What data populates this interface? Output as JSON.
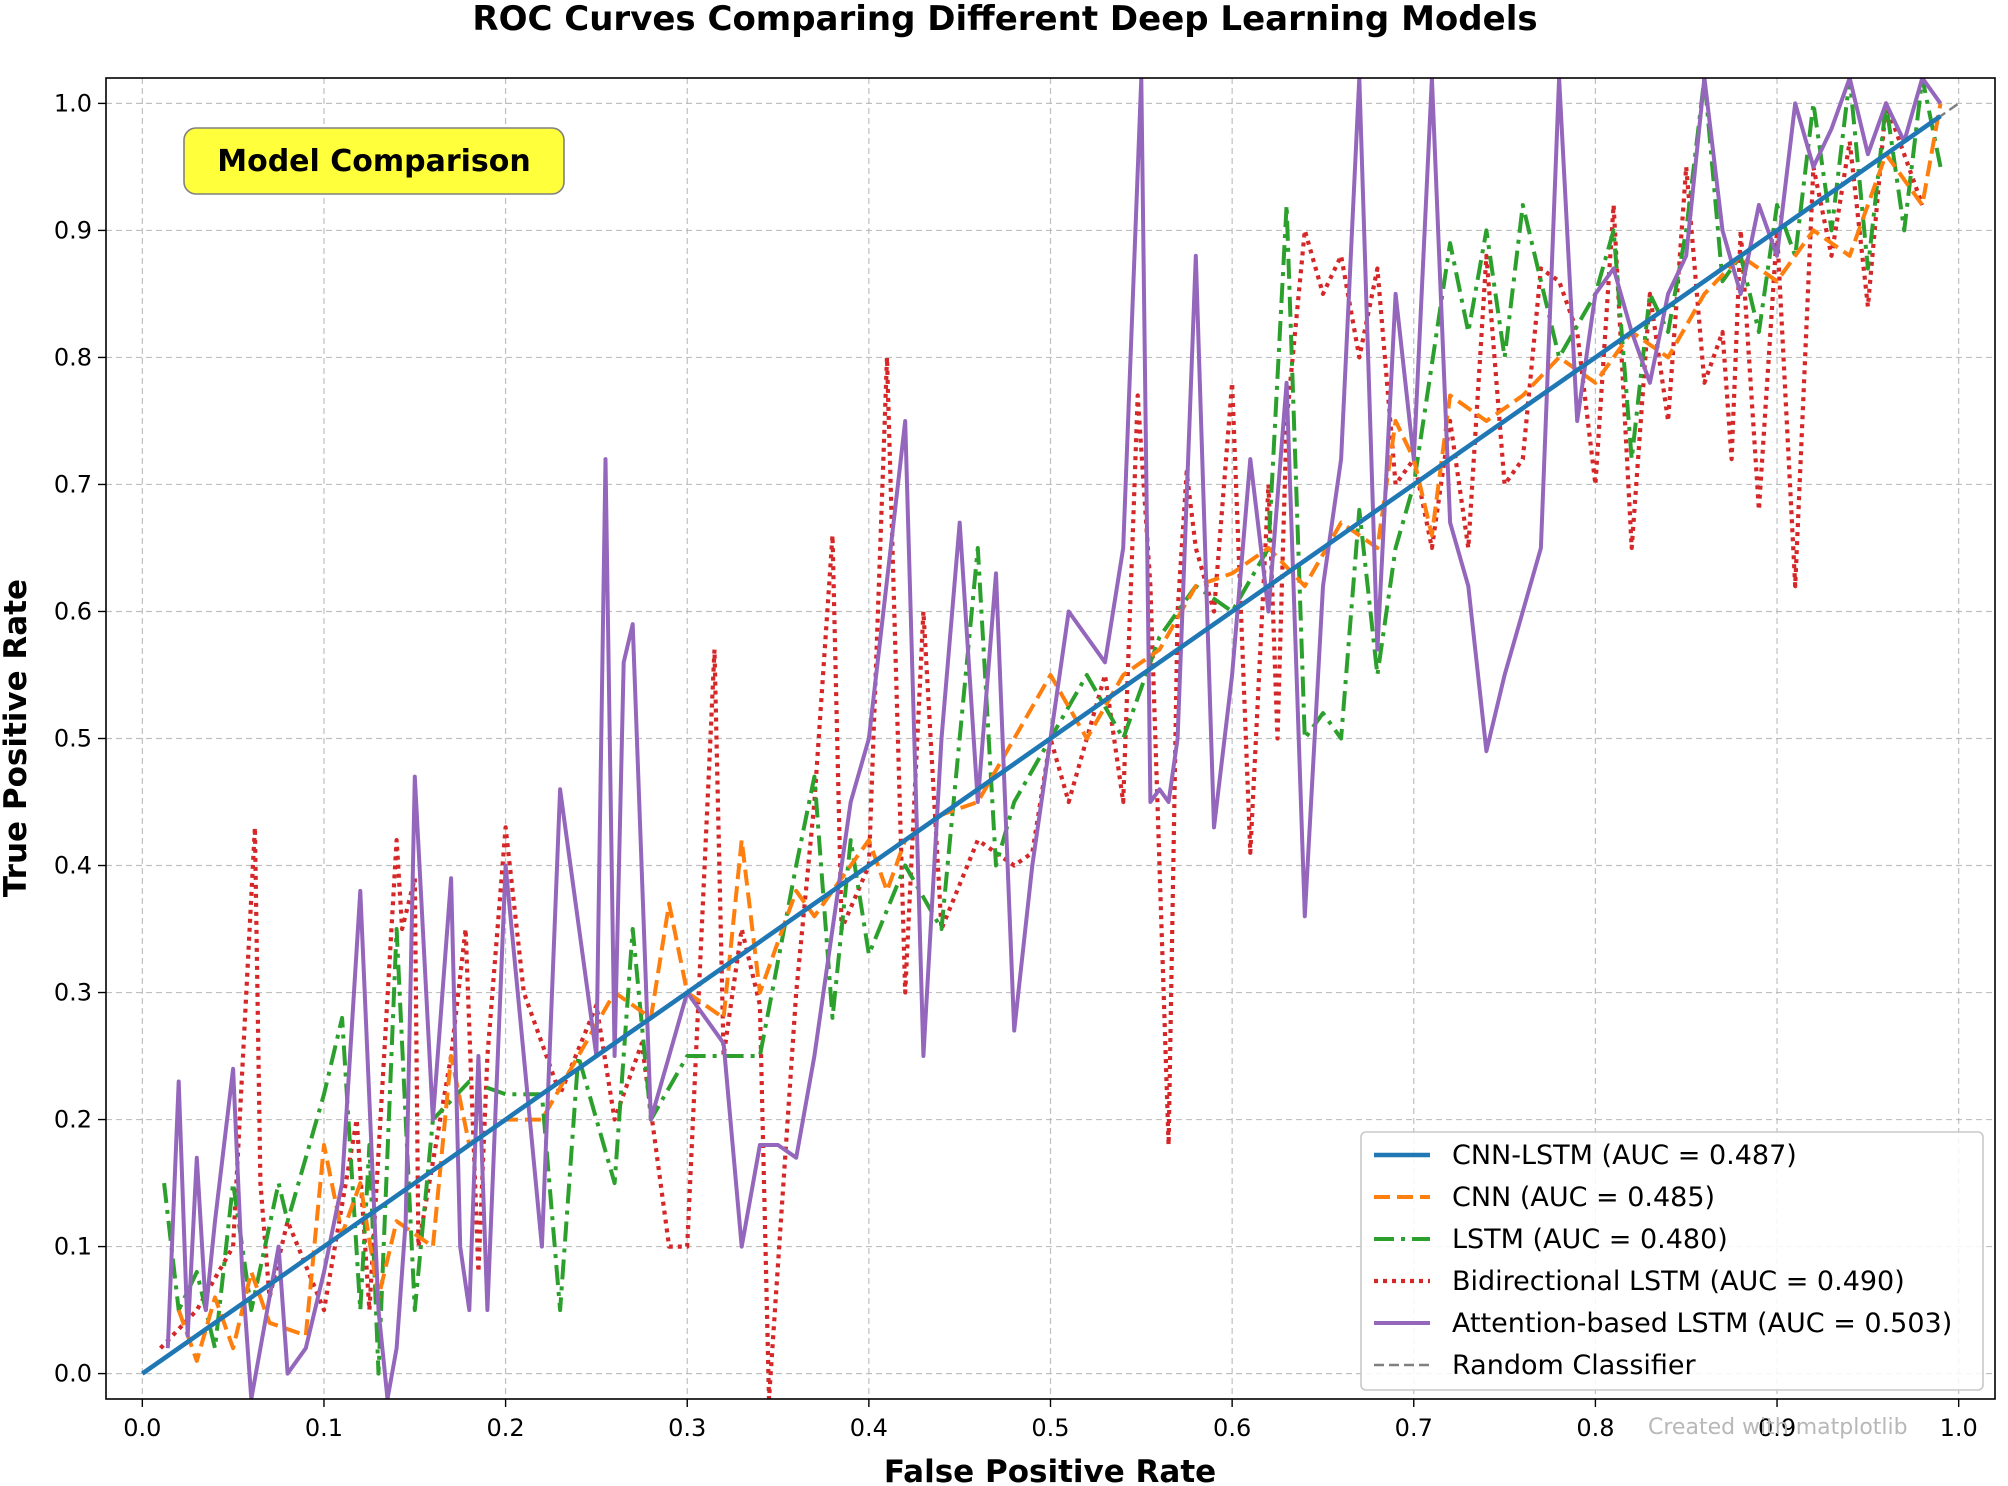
{
  "chart_data": {
    "type": "line",
    "title": "ROC Curves Comparing Different Deep Learning Models",
    "xlabel": "False Positive Rate",
    "ylabel": "True Positive Rate",
    "xlim": [
      -0.02,
      1.02
    ],
    "ylim": [
      -0.02,
      1.02
    ],
    "xticks": [
      "0.0",
      "0.1",
      "0.2",
      "0.3",
      "0.4",
      "0.5",
      "0.6",
      "0.7",
      "0.8",
      "0.9",
      "1.0"
    ],
    "yticks": [
      "0.0",
      "0.1",
      "0.2",
      "0.3",
      "0.4",
      "0.5",
      "0.6",
      "0.7",
      "0.8",
      "0.9",
      "1.0"
    ],
    "grid": true,
    "legend_position": "bottom-right",
    "annotation": "Model Comparison",
    "watermark": "Created with matplotlib",
    "series": [
      {
        "name": "Random Classifier",
        "label": "Random Classifier",
        "color": "#808080",
        "style": "dashed-thin",
        "x": [
          0.0,
          1.0
        ],
        "y": [
          0.0,
          1.0
        ]
      },
      {
        "name": "Bidirectional LSTM",
        "label": "Bidirectional LSTM (AUC = 0.490)",
        "color": "#d62728",
        "style": "dotted",
        "x": [
          0.01,
          0.03,
          0.05,
          0.062,
          0.065,
          0.07,
          0.08,
          0.1,
          0.118,
          0.125,
          0.14,
          0.143,
          0.15,
          0.152,
          0.17,
          0.178,
          0.185,
          0.19,
          0.2,
          0.21,
          0.23,
          0.25,
          0.26,
          0.275,
          0.29,
          0.3,
          0.315,
          0.32,
          0.33,
          0.34,
          0.345,
          0.36,
          0.37,
          0.38,
          0.385,
          0.4,
          0.41,
          0.42,
          0.43,
          0.44,
          0.46,
          0.48,
          0.49,
          0.5,
          0.51,
          0.52,
          0.53,
          0.54,
          0.548,
          0.555,
          0.565,
          0.57,
          0.575,
          0.58,
          0.59,
          0.6,
          0.61,
          0.62,
          0.625,
          0.63,
          0.64,
          0.65,
          0.66,
          0.67,
          0.68,
          0.69,
          0.7,
          0.71,
          0.72,
          0.73,
          0.74,
          0.75,
          0.76,
          0.77,
          0.78,
          0.79,
          0.8,
          0.81,
          0.82,
          0.83,
          0.84,
          0.85,
          0.86,
          0.87,
          0.875,
          0.88,
          0.89,
          0.9,
          0.91,
          0.92,
          0.93,
          0.94,
          0.95,
          0.96,
          0.98
        ],
        "y": [
          0.02,
          0.05,
          0.1,
          0.43,
          0.15,
          0.06,
          0.12,
          0.05,
          0.2,
          0.05,
          0.42,
          0.35,
          0.39,
          0.1,
          0.25,
          0.35,
          0.08,
          0.25,
          0.43,
          0.3,
          0.22,
          0.29,
          0.2,
          0.26,
          0.1,
          0.1,
          0.57,
          0.25,
          0.35,
          0.29,
          -0.02,
          0.3,
          0.45,
          0.66,
          0.35,
          0.4,
          0.8,
          0.3,
          0.6,
          0.35,
          0.42,
          0.4,
          0.41,
          0.5,
          0.45,
          0.5,
          0.55,
          0.45,
          0.77,
          0.62,
          0.18,
          0.6,
          0.71,
          0.65,
          0.6,
          0.78,
          0.41,
          0.7,
          0.5,
          0.75,
          0.9,
          0.85,
          0.88,
          0.8,
          0.87,
          0.7,
          0.72,
          0.65,
          0.75,
          0.65,
          0.88,
          0.7,
          0.72,
          0.87,
          0.86,
          0.82,
          0.7,
          0.92,
          0.65,
          0.85,
          0.75,
          0.95,
          0.78,
          0.82,
          0.72,
          0.9,
          0.68,
          0.9,
          0.62,
          0.95,
          0.88,
          0.97,
          0.84,
          1.0,
          0.92
        ]
      },
      {
        "name": "LSTM",
        "label": "LSTM (AUC = 0.480)",
        "color": "#2ca02c",
        "style": "dashdot",
        "x": [
          0.012,
          0.02,
          0.03,
          0.04,
          0.05,
          0.06,
          0.075,
          0.08,
          0.1,
          0.11,
          0.12,
          0.125,
          0.13,
          0.14,
          0.15,
          0.16,
          0.18,
          0.2,
          0.22,
          0.23,
          0.24,
          0.26,
          0.27,
          0.28,
          0.3,
          0.32,
          0.34,
          0.36,
          0.37,
          0.38,
          0.39,
          0.4,
          0.42,
          0.44,
          0.46,
          0.47,
          0.48,
          0.5,
          0.52,
          0.54,
          0.56,
          0.58,
          0.6,
          0.62,
          0.63,
          0.64,
          0.65,
          0.66,
          0.67,
          0.68,
          0.69,
          0.7,
          0.72,
          0.73,
          0.74,
          0.75,
          0.76,
          0.78,
          0.8,
          0.81,
          0.82,
          0.83,
          0.84,
          0.85,
          0.86,
          0.87,
          0.88,
          0.89,
          0.9,
          0.91,
          0.92,
          0.93,
          0.94,
          0.95,
          0.96,
          0.97,
          0.98,
          0.99
        ],
        "y": [
          0.15,
          0.05,
          0.08,
          0.02,
          0.15,
          0.05,
          0.15,
          0.12,
          0.22,
          0.28,
          0.05,
          0.18,
          0.0,
          0.35,
          0.05,
          0.2,
          0.23,
          0.22,
          0.22,
          0.05,
          0.25,
          0.15,
          0.35,
          0.2,
          0.25,
          0.25,
          0.25,
          0.4,
          0.47,
          0.28,
          0.42,
          0.33,
          0.4,
          0.35,
          0.65,
          0.4,
          0.45,
          0.5,
          0.55,
          0.5,
          0.58,
          0.62,
          0.6,
          0.65,
          0.92,
          0.5,
          0.52,
          0.5,
          0.68,
          0.55,
          0.65,
          0.7,
          0.89,
          0.82,
          0.9,
          0.8,
          0.92,
          0.8,
          0.85,
          0.9,
          0.72,
          0.85,
          0.82,
          0.9,
          1.02,
          0.86,
          0.88,
          0.82,
          0.92,
          0.88,
          1.0,
          0.9,
          1.02,
          0.87,
          1.0,
          0.9,
          1.02,
          0.95
        ]
      },
      {
        "name": "CNN",
        "label": "CNN (AUC = 0.485)",
        "color": "#ff7f0e",
        "style": "dashed",
        "x": [
          0.02,
          0.03,
          0.04,
          0.05,
          0.06,
          0.07,
          0.09,
          0.1,
          0.11,
          0.12,
          0.13,
          0.14,
          0.16,
          0.17,
          0.18,
          0.2,
          0.22,
          0.24,
          0.26,
          0.28,
          0.29,
          0.3,
          0.32,
          0.33,
          0.34,
          0.36,
          0.37,
          0.38,
          0.4,
          0.41,
          0.42,
          0.44,
          0.46,
          0.48,
          0.5,
          0.52,
          0.54,
          0.56,
          0.58,
          0.6,
          0.62,
          0.64,
          0.66,
          0.68,
          0.69,
          0.7,
          0.71,
          0.72,
          0.74,
          0.76,
          0.78,
          0.8,
          0.82,
          0.84,
          0.86,
          0.88,
          0.9,
          0.92,
          0.94,
          0.96,
          0.98,
          0.99
        ],
        "y": [
          0.05,
          0.01,
          0.06,
          0.02,
          0.08,
          0.04,
          0.03,
          0.18,
          0.11,
          0.15,
          0.06,
          0.12,
          0.1,
          0.25,
          0.18,
          0.2,
          0.2,
          0.25,
          0.3,
          0.28,
          0.37,
          0.3,
          0.28,
          0.42,
          0.3,
          0.38,
          0.36,
          0.38,
          0.42,
          0.38,
          0.42,
          0.44,
          0.45,
          0.5,
          0.55,
          0.5,
          0.55,
          0.57,
          0.62,
          0.63,
          0.65,
          0.62,
          0.67,
          0.65,
          0.75,
          0.72,
          0.66,
          0.77,
          0.75,
          0.77,
          0.8,
          0.78,
          0.82,
          0.8,
          0.85,
          0.88,
          0.86,
          0.9,
          0.88,
          0.96,
          0.92,
          1.0
        ]
      },
      {
        "name": "Attention-based LSTM",
        "label": "Attention-based LSTM (AUC = 0.503)",
        "color": "#9467bd",
        "style": "solid",
        "x": [
          0.014,
          0.02,
          0.025,
          0.03,
          0.035,
          0.04,
          0.05,
          0.055,
          0.06,
          0.075,
          0.08,
          0.09,
          0.1,
          0.11,
          0.12,
          0.13,
          0.135,
          0.14,
          0.145,
          0.15,
          0.16,
          0.17,
          0.175,
          0.18,
          0.185,
          0.19,
          0.2,
          0.21,
          0.22,
          0.23,
          0.25,
          0.255,
          0.26,
          0.265,
          0.27,
          0.28,
          0.29,
          0.3,
          0.32,
          0.33,
          0.34,
          0.35,
          0.36,
          0.37,
          0.38,
          0.39,
          0.4,
          0.42,
          0.43,
          0.44,
          0.45,
          0.46,
          0.47,
          0.48,
          0.49,
          0.5,
          0.51,
          0.52,
          0.53,
          0.54,
          0.55,
          0.555,
          0.56,
          0.565,
          0.57,
          0.58,
          0.59,
          0.6,
          0.61,
          0.62,
          0.63,
          0.64,
          0.65,
          0.66,
          0.67,
          0.68,
          0.69,
          0.7,
          0.71,
          0.72,
          0.73,
          0.74,
          0.75,
          0.76,
          0.77,
          0.78,
          0.79,
          0.8,
          0.81,
          0.82,
          0.83,
          0.84,
          0.85,
          0.86,
          0.87,
          0.88,
          0.89,
          0.9,
          0.91,
          0.92,
          0.93,
          0.94,
          0.95,
          0.96,
          0.97,
          0.98,
          0.99
        ],
        "y": [
          0.02,
          0.23,
          0.03,
          0.17,
          0.05,
          0.12,
          0.24,
          0.08,
          -0.02,
          0.1,
          0.0,
          0.02,
          0.08,
          0.15,
          0.38,
          0.05,
          -0.02,
          0.02,
          0.12,
          0.47,
          0.2,
          0.39,
          0.1,
          0.05,
          0.25,
          0.05,
          0.4,
          0.25,
          0.1,
          0.46,
          0.25,
          0.72,
          0.25,
          0.56,
          0.59,
          0.2,
          0.25,
          0.3,
          0.26,
          0.1,
          0.18,
          0.18,
          0.17,
          0.25,
          0.35,
          0.45,
          0.5,
          0.75,
          0.25,
          0.5,
          0.67,
          0.45,
          0.63,
          0.27,
          0.4,
          0.5,
          0.6,
          0.58,
          0.56,
          0.65,
          1.02,
          0.45,
          0.46,
          0.45,
          0.5,
          0.88,
          0.43,
          0.55,
          0.72,
          0.6,
          0.78,
          0.36,
          0.62,
          0.72,
          1.02,
          0.57,
          0.85,
          0.72,
          1.02,
          0.67,
          0.62,
          0.49,
          0.55,
          0.6,
          0.65,
          1.02,
          0.75,
          0.85,
          0.87,
          0.82,
          0.78,
          0.85,
          0.88,
          1.02,
          0.9,
          0.85,
          0.92,
          0.88,
          1.0,
          0.95,
          0.98,
          1.02,
          0.96,
          1.0,
          0.97,
          1.02,
          1.0
        ]
      },
      {
        "name": "CNN-LSTM",
        "label": "CNN-LSTM (AUC = 0.487)",
        "color": "#1f77b4",
        "style": "solid-thick",
        "x": [
          0.0,
          0.99
        ],
        "y": [
          0.0,
          0.99
        ]
      }
    ],
    "legend_order": [
      "CNN-LSTM",
      "CNN",
      "LSTM",
      "Bidirectional LSTM",
      "Attention-based LSTM",
      "Random Classifier"
    ]
  }
}
